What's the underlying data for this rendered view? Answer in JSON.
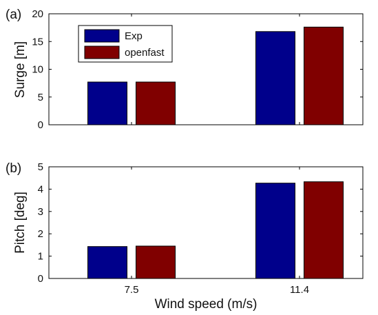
{
  "chart_data": [
    {
      "type": "bar",
      "panel_label": "(a)",
      "categories": [
        "7.5",
        "11.4"
      ],
      "series": [
        {
          "name": "Exp",
          "values": [
            7.7,
            16.8
          ],
          "color": "#00008B"
        },
        {
          "name": "openfast",
          "values": [
            7.7,
            17.6
          ],
          "color": "#800000"
        }
      ],
      "xlabel": "",
      "ylabel": "Surge [m]",
      "ylim": [
        0,
        20
      ],
      "yticks": [
        "0",
        "5",
        "10",
        "15",
        "20"
      ],
      "show_x_tick_labels": false,
      "legend": {
        "placement": "top-left",
        "entries": [
          "Exp",
          "openfast"
        ]
      },
      "grid": false
    },
    {
      "type": "bar",
      "panel_label": "(b)",
      "categories": [
        "7.5",
        "11.4"
      ],
      "series": [
        {
          "name": "Exp",
          "values": [
            1.43,
            4.27
          ],
          "color": "#00008B"
        },
        {
          "name": "openfast",
          "values": [
            1.45,
            4.33
          ],
          "color": "#800000"
        }
      ],
      "xlabel": "Wind speed (m/s)",
      "ylabel": "Pitch [deg]",
      "ylim": [
        0,
        5
      ],
      "yticks": [
        "0",
        "1",
        "2",
        "3",
        "4",
        "5"
      ],
      "show_x_tick_labels": true,
      "legend": null,
      "grid": false
    }
  ]
}
